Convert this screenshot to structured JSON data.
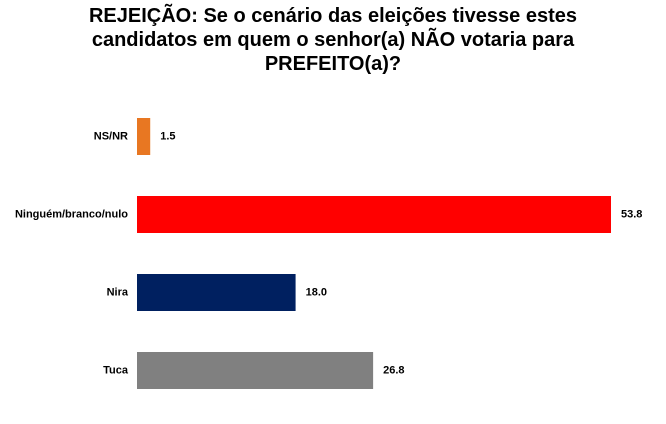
{
  "chart_data": {
    "type": "bar",
    "orientation": "horizontal",
    "title": "REJEIÇÃO: Se o cenário das eleições tivesse estes candidatos em quem o senhor(a) NÃO votaria para PREFEITO(a)?",
    "categories": [
      "NS/NR",
      "Ninguém/branco/nulo",
      "Nira",
      "Tuca"
    ],
    "values": [
      1.5,
      53.8,
      18.0,
      26.8
    ],
    "value_labels": [
      "1.5",
      "53.8",
      "18.0",
      "26.8"
    ],
    "colors": [
      "#e87722",
      "#ff0000",
      "#002060",
      "#808080"
    ]
  }
}
